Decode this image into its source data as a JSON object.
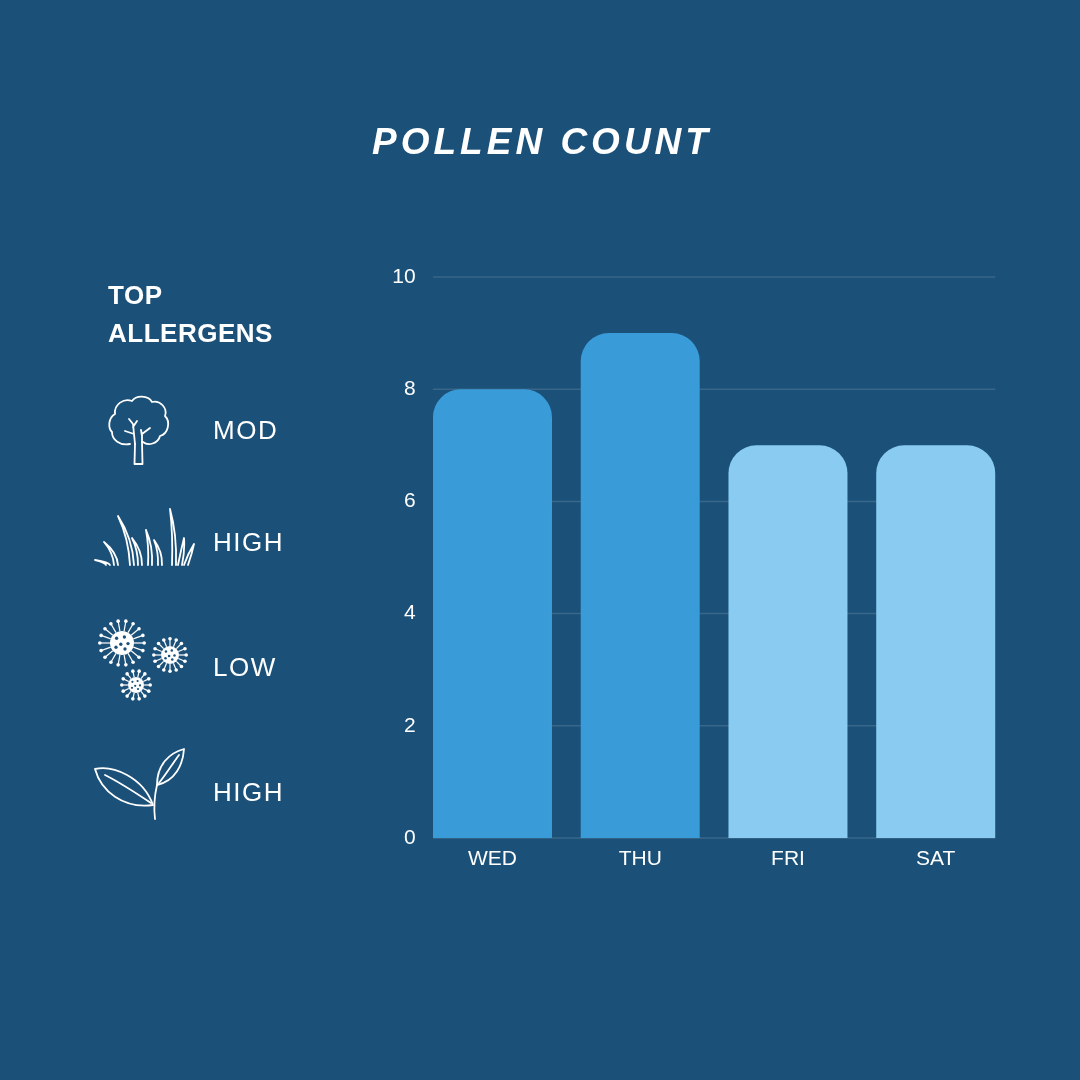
{
  "chart_data": [
    {
      "type": "bar",
      "title": "POLLEN COUNT",
      "categories": [
        "WED",
        "THU",
        "FRI",
        "SAT"
      ],
      "values": [
        8,
        9,
        7,
        7
      ],
      "colors": [
        "#3a9bd9",
        "#3a9bd9",
        "#89cbf1",
        "#89cbf1"
      ],
      "ylim": [
        0,
        10
      ],
      "yticks": [
        0,
        2,
        4,
        6,
        8,
        10
      ],
      "grid": "y"
    },
    {
      "type": "other",
      "title": "TOP ALLERGENS",
      "annotations": [
        "MOD",
        "HIGH",
        "LOW",
        "HIGH"
      ]
    }
  ]
}
